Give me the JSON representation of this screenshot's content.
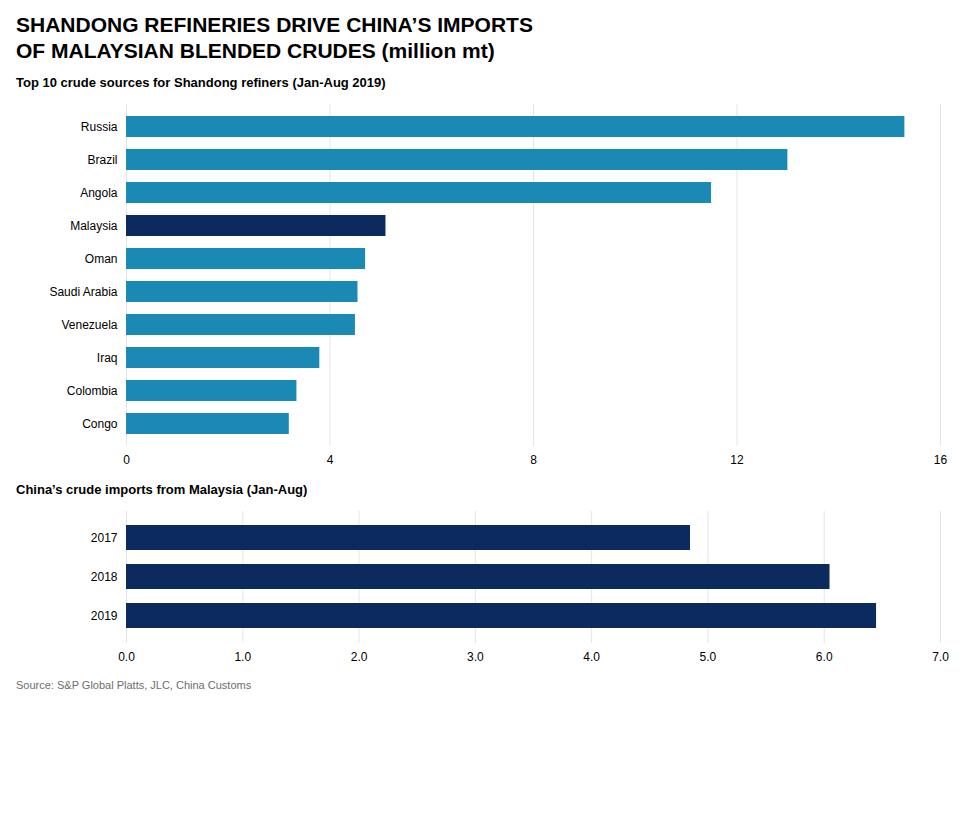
{
  "title": [
    "SHANDONG REFINERIES DRIVE CHINA’S IMPORTS",
    "OF MALAYSIAN BLENDED CRUDES (million mt)"
  ],
  "source": "Source: S&P Global Platts, JLC, China Customs",
  "chart_data": [
    {
      "type": "bar",
      "orientation": "horizontal",
      "subtitle": "Top 10 crude sources for Shandong refiners (Jan-Aug 2019)",
      "categories": [
        "Russia",
        "Brazil",
        "Angola",
        "Malaysia",
        "Oman",
        "Saudi Arabia",
        "Venezuela",
        "Iraq",
        "Colombia",
        "Congo"
      ],
      "values": [
        15.3,
        13.0,
        11.5,
        5.1,
        4.7,
        4.55,
        4.5,
        3.8,
        3.35,
        3.2
      ],
      "colors": [
        "#1a8ab5",
        "#1a8ab5",
        "#1a8ab5",
        "#0d2a5e",
        "#1a8ab5",
        "#1a8ab5",
        "#1a8ab5",
        "#1a8ab5",
        "#1a8ab5",
        "#1a8ab5"
      ],
      "xlim": [
        0,
        16
      ],
      "xticks": [
        0,
        4,
        8,
        12,
        16
      ],
      "grid": true
    },
    {
      "type": "bar",
      "orientation": "horizontal",
      "subtitle": "China’s crude imports from Malaysia (Jan-Aug)",
      "categories": [
        "2017",
        "2018",
        "2019"
      ],
      "values": [
        4.85,
        6.05,
        6.45
      ],
      "color": "#0d2a5e",
      "xlim": [
        0,
        7
      ],
      "xticks": [
        0,
        1,
        2,
        3,
        4,
        5,
        6,
        7
      ],
      "grid": true
    }
  ]
}
